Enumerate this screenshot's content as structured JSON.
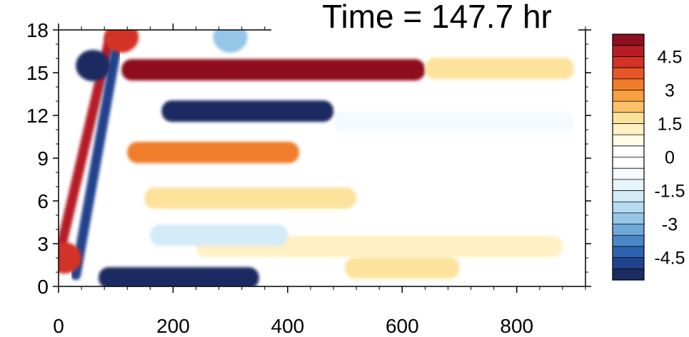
{
  "chart_data": {
    "type": "heatmap",
    "title": "Time = 147.7 hr",
    "xlabel": "",
    "ylabel": "",
    "xlim": [
      0,
      920
    ],
    "ylim": [
      0,
      18
    ],
    "x_ticks": [
      "0",
      "200",
      "400",
      "600",
      "800"
    ],
    "y_ticks": [
      "0",
      "3",
      "6",
      "9",
      "12",
      "15",
      "18"
    ],
    "colorbar": {
      "levels": [
        -5.5,
        -5,
        -4.5,
        -4,
        -3.5,
        -3,
        -2.5,
        -2,
        -1.5,
        -1,
        -0.5,
        0,
        0.5,
        1,
        1.5,
        2,
        2.5,
        3,
        3.5,
        4,
        4.5,
        5
      ],
      "tick_labels": [
        "4.5",
        "3",
        "1.5",
        "0",
        "-1.5",
        "-3",
        "-4.5"
      ],
      "colors": [
        "#1b2c62",
        "#21438d",
        "#2e63b0",
        "#4a87c7",
        "#6fa9d9",
        "#94c6e8",
        "#b6dbf0",
        "#d3ebf7",
        "#e6f4fb",
        "#f4fafd",
        "#ffffff",
        "#ffffff",
        "#fffbe6",
        "#fff1c4",
        "#fde29c",
        "#fbc26a",
        "#f7a142",
        "#f07d2a",
        "#e4582a",
        "#d33227",
        "#b61e26",
        "#8e0f1f"
      ]
    },
    "features": [
      {
        "kind": "band",
        "x0": 110,
        "x1": 640,
        "y": 15.2,
        "value": 5.5
      },
      {
        "kind": "band",
        "x0": 640,
        "x1": 900,
        "y": 15.3,
        "value": 1.8
      },
      {
        "kind": "band",
        "x0": 180,
        "x1": 480,
        "y": 12.3,
        "value": -5.5
      },
      {
        "kind": "band",
        "x0": 480,
        "x1": 900,
        "y": 11.5,
        "value": -0.8
      },
      {
        "kind": "band",
        "x0": 70,
        "x1": 350,
        "y": 0.6,
        "value": -5.0
      },
      {
        "kind": "band",
        "x0": 120,
        "x1": 420,
        "y": 9.4,
        "value": 3.5
      },
      {
        "kind": "band",
        "x0": 150,
        "x1": 520,
        "y": 6.2,
        "value": 2.0
      },
      {
        "kind": "band",
        "x0": 240,
        "x1": 880,
        "y": 2.8,
        "value": 1.2
      },
      {
        "kind": "band",
        "x0": 500,
        "x1": 700,
        "y": 1.3,
        "value": 1.8
      },
      {
        "kind": "band",
        "x0": 160,
        "x1": 400,
        "y": 3.6,
        "value": -1.5
      },
      {
        "kind": "streak",
        "x0": 0,
        "y0": 2.0,
        "x1": 90,
        "y1": 17.5,
        "value": 5.0
      },
      {
        "kind": "streak",
        "x0": 30,
        "y0": 0.8,
        "x1": 100,
        "y1": 16.5,
        "value": -4.5
      },
      {
        "kind": "blob",
        "x": 60,
        "y": 15.5,
        "value": -5.0
      },
      {
        "kind": "blob",
        "x": 110,
        "y": 17.5,
        "value": 4.5
      },
      {
        "kind": "blob",
        "x": 300,
        "y": 17.5,
        "value": -2.5
      },
      {
        "kind": "blob",
        "x": 10,
        "y": 2.0,
        "value": 4.5
      }
    ]
  }
}
